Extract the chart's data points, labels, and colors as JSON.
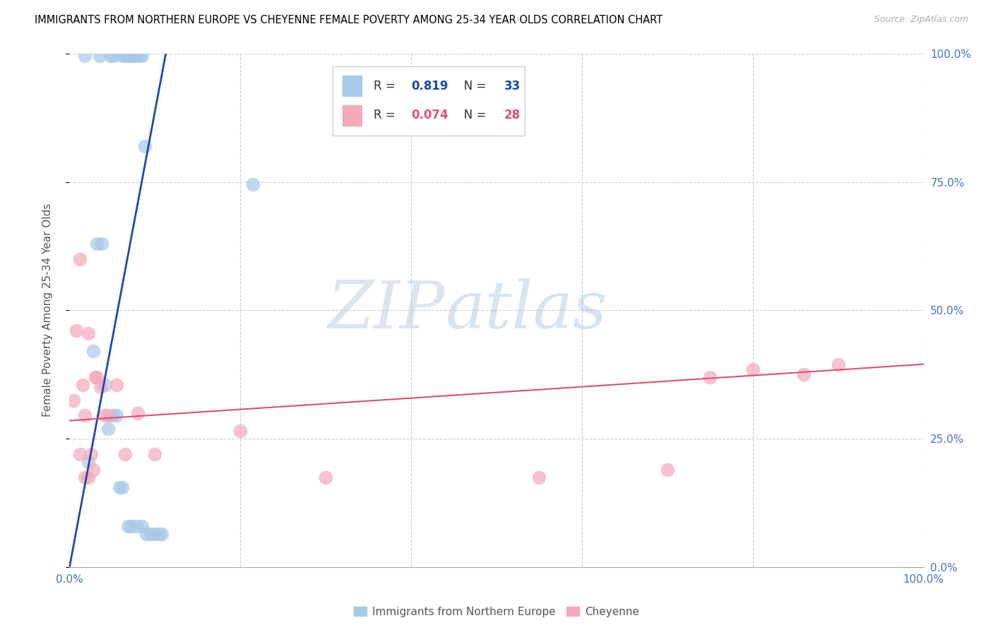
{
  "title": "IMMIGRANTS FROM NORTHERN EUROPE VS CHEYENNE FEMALE POVERTY AMONG 25-34 YEAR OLDS CORRELATION CHART",
  "source": "Source: ZipAtlas.com",
  "ylabel": "Female Poverty Among 25-34 Year Olds",
  "xlabel_blue": "Immigrants from Northern Europe",
  "xlabel_pink": "Cheyenne",
  "watermark_zip": "ZIP",
  "watermark_atlas": "atlas",
  "blue_R": "0.819",
  "blue_N": "33",
  "pink_R": "0.074",
  "pink_N": "28",
  "blue_scatter_color": "#a8c8e8",
  "pink_scatter_color": "#f4a8b8",
  "blue_line_color": "#1a4aaa",
  "pink_line_color": "#e05070",
  "blue_scatter_x": [
    0.018,
    0.035,
    0.048,
    0.052,
    0.062,
    0.065,
    0.068,
    0.072,
    0.075,
    0.078,
    0.082,
    0.085,
    0.088,
    0.022,
    0.028,
    0.032,
    0.038,
    0.042,
    0.045,
    0.05,
    0.055,
    0.058,
    0.062,
    0.068,
    0.072,
    0.078,
    0.085,
    0.09,
    0.095,
    0.1,
    0.105,
    0.108,
    0.215
  ],
  "blue_scatter_y": [
    0.995,
    0.995,
    0.995,
    0.995,
    0.995,
    0.995,
    0.995,
    0.995,
    0.995,
    0.995,
    0.995,
    0.995,
    0.82,
    0.205,
    0.42,
    0.63,
    0.63,
    0.355,
    0.27,
    0.295,
    0.295,
    0.155,
    0.155,
    0.08,
    0.08,
    0.08,
    0.08,
    0.065,
    0.065,
    0.065,
    0.065,
    0.065,
    0.745
  ],
  "pink_scatter_x": [
    0.005,
    0.008,
    0.012,
    0.015,
    0.018,
    0.022,
    0.025,
    0.03,
    0.032,
    0.036,
    0.04,
    0.045,
    0.055,
    0.065,
    0.08,
    0.1,
    0.2,
    0.3,
    0.55,
    0.7,
    0.75,
    0.8,
    0.86,
    0.9,
    0.012,
    0.018,
    0.022,
    0.028
  ],
  "pink_scatter_y": [
    0.325,
    0.46,
    0.6,
    0.355,
    0.295,
    0.455,
    0.22,
    0.37,
    0.37,
    0.35,
    0.295,
    0.295,
    0.355,
    0.22,
    0.3,
    0.22,
    0.265,
    0.175,
    0.175,
    0.19,
    0.37,
    0.385,
    0.375,
    0.395,
    0.22,
    0.175,
    0.175,
    0.19
  ],
  "blue_line_x": [
    0.0,
    0.115
  ],
  "blue_line_y": [
    0.0,
    1.02
  ],
  "pink_line_x": [
    0.0,
    1.0
  ],
  "pink_line_y": [
    0.285,
    0.395
  ],
  "xtick_positions": [
    0.0,
    0.2,
    0.4,
    0.6,
    0.8,
    1.0
  ],
  "xtick_labels": [
    "0.0%",
    "",
    "",
    "",
    "",
    "100.0%"
  ],
  "ytick_positions": [
    0.0,
    0.25,
    0.5,
    0.75,
    1.0
  ],
  "ytick_right_labels": [
    "0.0%",
    "25.0%",
    "50.0%",
    "75.0%",
    "100.0%"
  ],
  "xlim": [
    0.0,
    1.0
  ],
  "ylim": [
    0.0,
    1.0
  ],
  "grid_color": "#cccccc"
}
